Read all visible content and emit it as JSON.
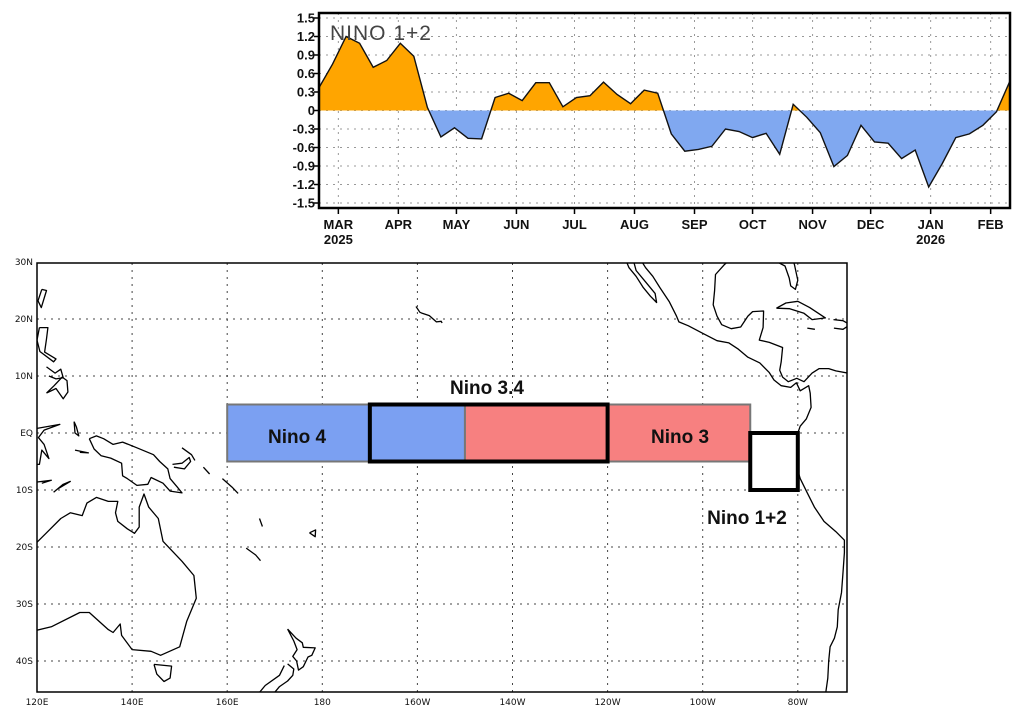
{
  "chart_data": {
    "type": "area",
    "title": "NINO 1+2",
    "xlabel": "",
    "ylabel": "",
    "ylim": [
      -1.5,
      1.5
    ],
    "yticks": [
      "1.5",
      "1.2",
      "0.9",
      "0.6",
      "0.3",
      "0",
      "-0.3",
      "-0.6",
      "-0.9",
      "-1.2",
      "-1.5"
    ],
    "xlim": [
      "2025-02-19",
      "2026-02-11"
    ],
    "xticks": [
      {
        "date": "2025-03-01",
        "label": "MAR",
        "year": "2025"
      },
      {
        "date": "2025-04-01",
        "label": "APR"
      },
      {
        "date": "2025-05-01",
        "label": "MAY"
      },
      {
        "date": "2025-06-01",
        "label": "JUN"
      },
      {
        "date": "2025-07-01",
        "label": "JUL"
      },
      {
        "date": "2025-08-01",
        "label": "AUG"
      },
      {
        "date": "2025-09-01",
        "label": "SEP"
      },
      {
        "date": "2025-10-01",
        "label": "OCT"
      },
      {
        "date": "2025-11-01",
        "label": "NOV"
      },
      {
        "date": "2025-12-01",
        "label": "DEC"
      },
      {
        "date": "2026-01-01",
        "label": "JAN",
        "year": "2026"
      },
      {
        "date": "2026-02-01",
        "label": "FEB"
      }
    ],
    "grid": true,
    "positive_color": "#FFA500",
    "negative_color": "#80A8F0",
    "x": [
      "2025-02-19",
      "2025-02-26",
      "2025-03-05",
      "2025-03-12",
      "2025-03-19",
      "2025-03-26",
      "2025-04-02",
      "2025-04-09",
      "2025-04-16",
      "2025-04-23",
      "2025-04-30",
      "2025-05-07",
      "2025-05-14",
      "2025-05-21",
      "2025-05-28",
      "2025-06-04",
      "2025-06-11",
      "2025-06-18",
      "2025-06-25",
      "2025-07-02",
      "2025-07-09",
      "2025-07-16",
      "2025-07-23",
      "2025-07-30",
      "2025-08-06",
      "2025-08-13",
      "2025-08-20",
      "2025-08-27",
      "2025-09-03",
      "2025-09-10",
      "2025-09-17",
      "2025-09-24",
      "2025-10-01",
      "2025-10-08",
      "2025-10-15",
      "2025-10-22",
      "2025-10-29",
      "2025-11-05",
      "2025-11-12",
      "2025-11-19",
      "2025-11-26",
      "2025-12-03",
      "2025-12-10",
      "2025-12-17",
      "2025-12-24",
      "2025-12-31",
      "2026-01-07",
      "2026-01-14",
      "2026-01-21",
      "2026-01-28",
      "2026-02-04",
      "2026-02-11"
    ],
    "values": [
      0.37,
      0.75,
      1.2,
      1.09,
      0.7,
      0.81,
      1.09,
      0.88,
      0.05,
      -0.43,
      -0.28,
      -0.45,
      -0.46,
      0.21,
      0.28,
      0.16,
      0.45,
      0.45,
      0.06,
      0.21,
      0.24,
      0.46,
      0.26,
      0.11,
      0.33,
      0.28,
      -0.38,
      -0.66,
      -0.63,
      -0.58,
      -0.3,
      -0.34,
      -0.44,
      -0.37,
      -0.71,
      0.1,
      -0.11,
      -0.36,
      -0.91,
      -0.73,
      -0.24,
      -0.51,
      -0.53,
      -0.78,
      -0.64,
      -1.24,
      -0.86,
      -0.44,
      -0.38,
      -0.24,
      -0.02,
      0.48
    ]
  },
  "map": {
    "lon_labels": [
      {
        "lon": 120,
        "label": "120E"
      },
      {
        "lon": 140,
        "label": "140E"
      },
      {
        "lon": 160,
        "label": "160E"
      },
      {
        "lon": 180,
        "label": "180"
      },
      {
        "lon": 200,
        "label": "160W"
      },
      {
        "lon": 220,
        "label": "140W"
      },
      {
        "lon": 240,
        "label": "120W"
      },
      {
        "lon": 260,
        "label": "100W"
      },
      {
        "lon": 280,
        "label": "80W"
      }
    ],
    "lat_labels": [
      {
        "lat": 30,
        "label": "30N"
      },
      {
        "lat": 20,
        "label": "20N"
      },
      {
        "lat": 10,
        "label": "10N"
      },
      {
        "lat": 0,
        "label": "EQ"
      },
      {
        "lat": -10,
        "label": "10S"
      },
      {
        "lat": -20,
        "label": "20S"
      },
      {
        "lat": -30,
        "label": "30S"
      },
      {
        "lat": -40,
        "label": "40S"
      }
    ],
    "regions": {
      "nino4": {
        "label": "Nino 4",
        "color": "#7BA0F2"
      },
      "nino3": {
        "label": "Nino 3",
        "color": "#F78080"
      },
      "nino34": {
        "label": "Nino 3.4"
      },
      "nino12": {
        "label": "Nino 1+2"
      }
    }
  }
}
